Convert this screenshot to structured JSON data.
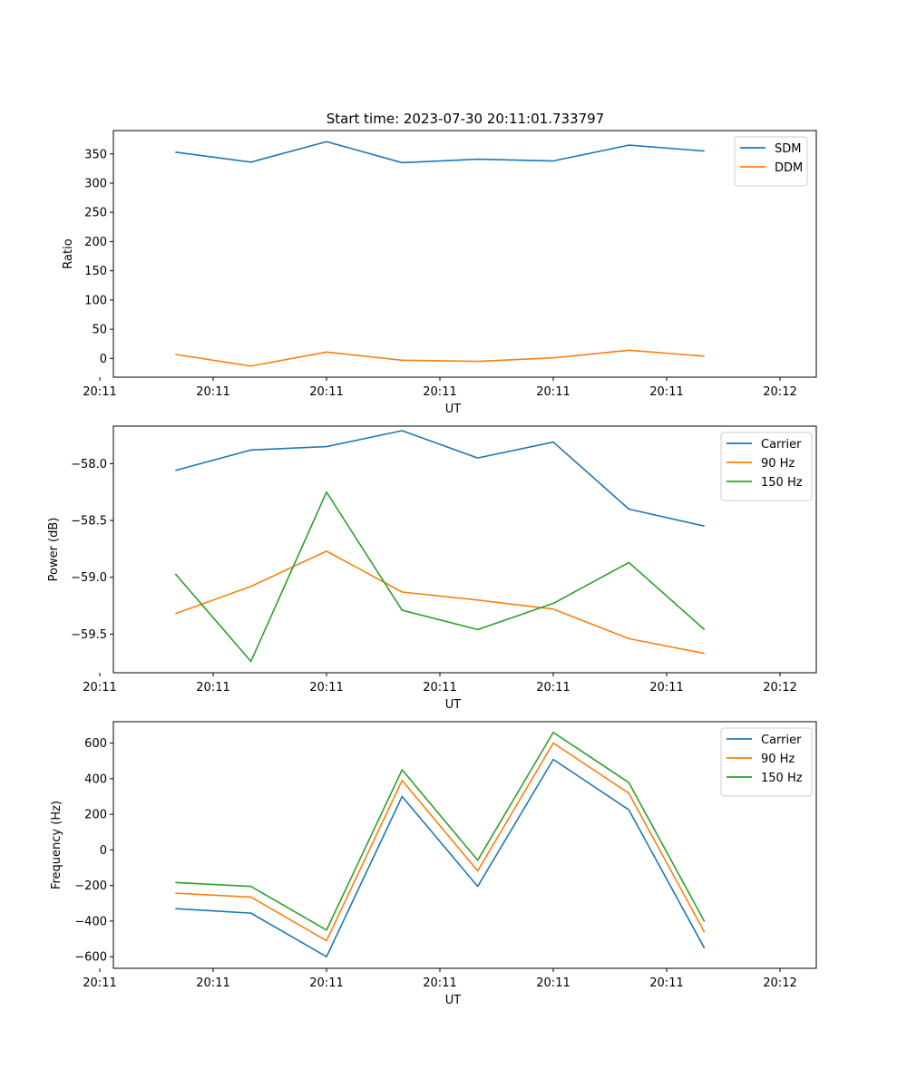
{
  "figure_title": "Start time: 2023-07-30 20:11:01.733797",
  "colors": {
    "blue": "#1f77b4",
    "orange": "#ff7f0e",
    "green": "#2ca02c"
  },
  "chart_data": [
    {
      "type": "line",
      "title": "Start time: 2023-07-30 20:11:01.733797",
      "xlabel": "UT",
      "ylabel": "Ratio",
      "x": [
        1,
        2,
        3,
        4,
        5,
        6,
        7,
        8
      ],
      "xlim": [
        0.18,
        9.48
      ],
      "xticks": [
        0,
        1.5,
        3,
        4.5,
        6,
        7.5,
        9
      ],
      "xtick_labels": [
        "20:11",
        "20:11",
        "20:11",
        "20:11",
        "20:11",
        "20:11",
        "20:12"
      ],
      "ylim": [
        -32,
        390
      ],
      "yticks": [
        0,
        50,
        100,
        150,
        200,
        250,
        300,
        350
      ],
      "ytick_labels": [
        "0",
        "50",
        "100",
        "150",
        "200",
        "250",
        "300",
        "350"
      ],
      "legend": "top-right",
      "series": [
        {
          "name": "SDM",
          "color": "#1f77b4",
          "values": [
            353,
            336,
            371,
            335,
            341,
            338,
            365,
            355
          ]
        },
        {
          "name": "DDM",
          "color": "#ff7f0e",
          "values": [
            7,
            -13,
            11,
            -3,
            -5,
            1,
            14,
            4
          ]
        }
      ]
    },
    {
      "type": "line",
      "title": "",
      "xlabel": "UT",
      "ylabel": "Power (dB)",
      "x": [
        1,
        2,
        3,
        4,
        5,
        6,
        7,
        8
      ],
      "xlim": [
        0.18,
        9.48
      ],
      "xticks": [
        0,
        1.5,
        3,
        4.5,
        6,
        7.5,
        9
      ],
      "xtick_labels": [
        "20:11",
        "20:11",
        "20:11",
        "20:11",
        "20:11",
        "20:11",
        "20:12"
      ],
      "ylim": [
        -59.84,
        -57.67
      ],
      "yticks": [
        -59.5,
        -59.0,
        -58.5,
        -58.0
      ],
      "ytick_labels": [
        "−59.5",
        "−59.0",
        "−58.5",
        "−58.0"
      ],
      "legend": "top-right",
      "series": [
        {
          "name": "Carrier",
          "color": "#1f77b4",
          "values": [
            -58.06,
            -57.88,
            -57.85,
            -57.71,
            -57.95,
            -57.81,
            -58.4,
            -58.55
          ]
        },
        {
          "name": "90 Hz",
          "color": "#ff7f0e",
          "values": [
            -59.32,
            -59.08,
            -58.77,
            -59.13,
            -59.2,
            -59.28,
            -59.54,
            -59.67
          ]
        },
        {
          "name": "150 Hz",
          "color": "#2ca02c",
          "values": [
            -58.97,
            -59.74,
            -58.25,
            -59.29,
            -59.46,
            -59.23,
            -58.87,
            -59.46
          ]
        }
      ]
    },
    {
      "type": "line",
      "title": "",
      "xlabel": "UT",
      "ylabel": "Frequency (Hz)",
      "x": [
        1,
        2,
        3,
        4,
        5,
        6,
        7,
        8
      ],
      "xlim": [
        0.18,
        9.48
      ],
      "xticks": [
        0,
        1.5,
        3,
        4.5,
        6,
        7.5,
        9
      ],
      "xtick_labels": [
        "20:11",
        "20:11",
        "20:11",
        "20:11",
        "20:11",
        "20:11",
        "20:12"
      ],
      "ylim": [
        -665,
        720
      ],
      "yticks": [
        -600,
        -400,
        -200,
        0,
        200,
        400,
        600
      ],
      "ytick_labels": [
        "−600",
        "−400",
        "−200",
        "0",
        "200",
        "400",
        "600"
      ],
      "legend": "top-right",
      "series": [
        {
          "name": "Carrier",
          "color": "#1f77b4",
          "values": [
            -330,
            -355,
            -600,
            300,
            -205,
            508,
            225,
            -552
          ]
        },
        {
          "name": "90 Hz",
          "color": "#ff7f0e",
          "values": [
            -243,
            -265,
            -510,
            390,
            -118,
            600,
            318,
            -462
          ]
        },
        {
          "name": "150 Hz",
          "color": "#2ca02c",
          "values": [
            -183,
            -205,
            -450,
            450,
            -58,
            660,
            378,
            -402
          ]
        }
      ]
    }
  ]
}
